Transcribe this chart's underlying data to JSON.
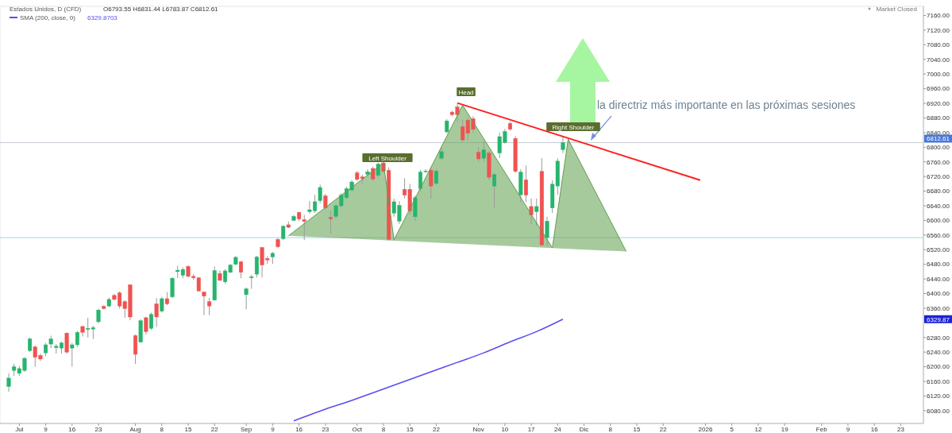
{
  "chart_data": {
    "type": "candlestick",
    "title": "Estados Unidos, D (CFD)",
    "categories": [
      null,
      null,
      "Jul",
      null,
      null,
      null,
      null,
      "9",
      null,
      null,
      null,
      null,
      "16",
      null,
      null,
      null,
      null,
      "23",
      null,
      null,
      null,
      null,
      null,
      null,
      "Aug",
      null,
      null,
      null,
      null,
      "8",
      null,
      null,
      null,
      null,
      "15",
      null,
      null,
      null,
      null,
      "22",
      null,
      null,
      null,
      null,
      null,
      "Sep",
      null,
      null,
      null,
      null,
      "9",
      null,
      null,
      null,
      null,
      "16",
      null,
      null,
      null,
      null,
      "23",
      null,
      null,
      null,
      null,
      null,
      "Oct",
      null,
      null,
      null,
      null,
      "8",
      null,
      null,
      null,
      null,
      "15",
      null,
      null,
      null,
      null,
      "22",
      null,
      null,
      null,
      null,
      null,
      null,
      null,
      "Nov",
      null,
      null,
      null,
      null,
      "10",
      null,
      null,
      null,
      null,
      "17",
      null,
      null,
      null,
      null,
      "24",
      null,
      null,
      null,
      null,
      "Dic",
      null,
      null,
      null,
      null,
      "8",
      null,
      null,
      null,
      null,
      "15",
      null,
      null,
      null,
      null,
      "22",
      null,
      null,
      null,
      null,
      null,
      null,
      null,
      "2026",
      null,
      null,
      null,
      null,
      "5",
      null,
      null,
      null,
      null,
      "12",
      null,
      null,
      null,
      null,
      "19",
      null,
      null,
      null,
      null,
      null,
      null,
      "Feb",
      null,
      null,
      null,
      null,
      "9",
      null,
      null,
      null,
      null,
      "16",
      null,
      null,
      null,
      null,
      "23",
      null,
      null,
      null,
      null
    ],
    "ohlc": [
      [
        6146,
        6182,
        6132,
        6169
      ],
      [
        6190,
        6208,
        6175,
        6200
      ],
      [
        6182,
        6202,
        6175,
        6195
      ],
      [
        6190,
        6226,
        6186,
        6223
      ],
      [
        6244,
        6280,
        6240,
        6276
      ],
      [
        6254,
        6258,
        6200,
        6226
      ],
      [
        6231,
        6236,
        6216,
        6221
      ],
      [
        6238,
        6265,
        6229,
        6260
      ],
      [
        6262,
        6285,
        6251,
        6276
      ],
      [
        6252,
        6262,
        6236,
        6256
      ],
      [
        6251,
        6269,
        6236,
        6265
      ],
      [
        6292,
        6294,
        6236,
        6240
      ],
      [
        6251,
        6265,
        6200,
        6260
      ],
      [
        6260,
        6298,
        6254,
        6294
      ],
      [
        6310,
        6312,
        6283,
        6294
      ],
      [
        6302,
        6334,
        6280,
        6305
      ],
      [
        6303,
        6312,
        6276,
        6307
      ],
      [
        6323,
        6359,
        6319,
        6355
      ],
      [
        6365,
        6368,
        6357,
        6359
      ],
      [
        6366,
        6389,
        6363,
        6384
      ],
      [
        6395,
        6399,
        6381,
        6384
      ],
      [
        6402,
        6406,
        6359,
        6366
      ],
      [
        6378,
        6382,
        6334,
        6359
      ],
      [
        6424,
        6424,
        6327,
        6336
      ],
      [
        6285,
        6288,
        6208,
        6234
      ],
      [
        6267,
        6330,
        6267,
        6326
      ],
      [
        6334,
        6337,
        6288,
        6296
      ],
      [
        6305,
        6348,
        6301,
        6343
      ],
      [
        6372,
        6388,
        6309,
        6336
      ],
      [
        6352,
        6391,
        6348,
        6386
      ],
      [
        6386,
        6404,
        6368,
        6372
      ],
      [
        6391,
        6445,
        6388,
        6442
      ],
      [
        6460,
        6476,
        6442,
        6464
      ],
      [
        6450,
        6471,
        6442,
        6466
      ],
      [
        6474,
        6478,
        6444,
        6447
      ],
      [
        6447,
        6453,
        6438,
        6443
      ],
      [
        6443,
        6445,
        6406,
        6407
      ],
      [
        6404,
        6406,
        6341,
        6393
      ],
      [
        6378,
        6388,
        6341,
        6366
      ],
      [
        6382,
        6474,
        6381,
        6463
      ],
      [
        6455,
        6463,
        6435,
        6436
      ],
      [
        6432,
        6467,
        6427,
        6462
      ],
      [
        6458,
        6481,
        6456,
        6478
      ],
      [
        6480,
        6503,
        6478,
        6499
      ],
      [
        6487,
        6489,
        6442,
        6458
      ],
      [
        6397,
        6417,
        6357,
        6413
      ],
      [
        6443,
        6451,
        6413,
        6446
      ],
      [
        6453,
        6503,
        6444,
        6500
      ],
      [
        6526,
        6528,
        6444,
        6478
      ],
      [
        6496,
        6502,
        6481,
        6492
      ],
      [
        6500,
        6514,
        6481,
        6510
      ],
      [
        6548,
        6552,
        6525,
        6528
      ],
      [
        6550,
        6586,
        6546,
        6584
      ],
      [
        6588,
        6597,
        6579,
        6581
      ],
      [
        6600,
        6615,
        6598,
        6611
      ],
      [
        6622,
        6624,
        6598,
        6604
      ],
      [
        6602,
        6615,
        6546,
        6597
      ],
      [
        6624,
        6653,
        6618,
        6629
      ],
      [
        6626,
        6670,
        6620,
        6651
      ],
      [
        6654,
        6698,
        6647,
        6690
      ],
      [
        6667,
        6672,
        6629,
        6634
      ],
      [
        6608,
        6626,
        6564,
        6604
      ],
      [
        6611,
        6645,
        6604,
        6640
      ],
      [
        6640,
        6674,
        6635,
        6669
      ],
      [
        6662,
        6692,
        6658,
        6687
      ],
      [
        6683,
        6710,
        6680,
        6705
      ],
      [
        6730,
        6735,
        6708,
        6712
      ],
      [
        6719,
        6725,
        6700,
        6714
      ],
      [
        6726,
        6740,
        6720,
        6733
      ],
      [
        6742,
        6747,
        6708,
        6713
      ],
      [
        6723,
        6758,
        6718,
        6754
      ],
      [
        6757,
        6762,
        6730,
        6734
      ],
      [
        6737,
        6745,
        6545,
        6548
      ],
      [
        6620,
        6660,
        6610,
        6651
      ],
      [
        6598,
        6653,
        6590,
        6641
      ],
      [
        6685,
        6715,
        6660,
        6669
      ],
      [
        6685,
        6700,
        6616,
        6626
      ],
      [
        6610,
        6668,
        6598,
        6662
      ],
      [
        6687,
        6738,
        6680,
        6732
      ],
      [
        6733,
        6740,
        6730,
        6735
      ],
      [
        6737,
        6745,
        6660,
        6694
      ],
      [
        6701,
        6740,
        6697,
        6735
      ],
      [
        6770,
        6800,
        6764,
        6788
      ],
      [
        6842,
        6877,
        6838,
        6872
      ],
      [
        6896,
        6900,
        6885,
        6889
      ],
      [
        6910,
        6920,
        6870,
        6889
      ],
      [
        6856,
        6875,
        6815,
        6820
      ],
      [
        6874,
        6880,
        6818,
        6838
      ],
      [
        6878,
        6885,
        6840,
        6849
      ],
      [
        6786,
        6800,
        6760,
        6768
      ],
      [
        6770,
        6815,
        6760,
        6793
      ],
      [
        6784,
        6790,
        6710,
        6718
      ],
      [
        6694,
        6730,
        6635,
        6725
      ],
      [
        6784,
        6840,
        6770,
        6829
      ],
      [
        6813,
        6850,
        6810,
        6843
      ],
      [
        6865,
        6870,
        6845,
        6849
      ],
      [
        6824,
        6830,
        6730,
        6734
      ],
      [
        6670,
        6740,
        6650,
        6732
      ],
      [
        6711,
        6750,
        6650,
        6669
      ],
      [
        6638,
        6660,
        6590,
        6615
      ],
      [
        6624,
        6660,
        6585,
        6638
      ],
      [
        6734,
        6770,
        6530,
        6533
      ],
      [
        6553,
        6610,
        6530,
        6598
      ],
      [
        6634,
        6710,
        6620,
        6699
      ],
      [
        6694,
        6770,
        6670,
        6762
      ],
      [
        6793.55,
        6831.44,
        6783.87,
        6812.61
      ],
      null,
      null,
      null,
      null,
      null,
      null,
      null,
      null,
      null,
      null,
      null,
      null,
      null,
      null,
      null,
      null,
      null,
      null,
      null,
      null,
      null,
      null,
      null,
      null,
      null,
      null,
      null,
      null,
      null,
      null,
      null,
      null,
      null,
      null,
      null,
      null,
      null,
      null,
      null,
      null,
      null,
      null,
      null,
      null,
      null,
      null,
      null,
      null,
      null,
      null,
      null,
      null,
      null,
      null,
      null,
      null,
      null,
      null,
      null,
      null,
      null,
      null,
      null,
      null,
      null,
      null,
      null,
      null
    ],
    "colors": [
      "#26b56e",
      "#26b56e",
      "#26b56e",
      "#26b56e",
      "#26b56e",
      "#ef5350",
      "#ef5350",
      "#26b56e",
      "#26b56e",
      "#26b56e",
      "#26b56e",
      "#ef5350",
      "#26b56e",
      "#26b56e",
      "#ef5350",
      "#26b56e",
      "#26b56e",
      "#26b56e",
      "#ef5350",
      "#26b56e",
      "#ef5350",
      "#ef5350",
      "#ef5350",
      "#ef5350",
      "#ef5350",
      "#26b56e",
      "#ef5350",
      "#26b56e",
      "#ef5350",
      "#26b56e",
      "#ef5350",
      "#26b56e",
      "#26b56e",
      "#26b56e",
      "#ef5350",
      "#ef5350",
      "#ef5350",
      "#ef5350",
      "#ef5350",
      "#26b56e",
      "#ef5350",
      "#26b56e",
      "#26b56e",
      "#26b56e",
      "#ef5350",
      "#26b56e",
      "#26b56e",
      "#26b56e",
      "#ef5350",
      "#ef5350",
      "#26b56e",
      "#ef5350",
      "#26b56e",
      "#ef5350",
      "#26b56e",
      "#ef5350",
      "#ef5350",
      "#26b56e",
      "#26b56e",
      "#26b56e",
      "#ef5350",
      "#ef5350",
      "#26b56e",
      "#26b56e",
      "#26b56e",
      "#26b56e",
      "#ef5350",
      "#ef5350",
      "#26b56e",
      "#ef5350",
      "#26b56e",
      "#ef5350",
      "#ef5350",
      "#26b56e",
      "#26b56e",
      "#ef5350",
      "#ef5350",
      "#26b56e",
      "#26b56e",
      "#26b56e",
      "#ef5350",
      "#26b56e",
      "#26b56e",
      "#26b56e",
      "#ef5350",
      "#ef5350",
      "#ef5350",
      "#ef5350",
      "#ef5350",
      "#ef5350",
      "#26b56e",
      "#ef5350",
      "#26b56e",
      "#26b56e",
      "#26b56e",
      "#ef5350",
      "#ef5350",
      "#26b56e",
      "#ef5350",
      "#ef5350",
      "#26b56e",
      "#ef5350",
      "#26b56e",
      "#26b56e",
      "#26b56e",
      "#26b56e",
      null,
      null,
      null,
      null,
      null,
      null,
      null,
      null,
      null,
      null,
      null,
      null,
      null,
      null,
      null,
      null,
      null,
      null,
      null,
      null,
      null,
      null,
      null,
      null,
      null,
      null,
      null,
      null,
      null,
      null,
      null,
      null,
      null,
      null,
      null,
      null,
      null,
      null,
      null,
      null,
      null,
      null,
      null,
      null,
      null,
      null,
      null,
      null,
      null,
      null,
      null,
      null,
      null,
      null,
      null,
      null,
      null,
      null,
      null,
      null,
      null,
      null,
      null,
      null,
      null,
      null,
      null,
      null
    ],
    "series": [
      {
        "name": "SMA (200, close, 0)",
        "type": "line",
        "color": "#5a4cf0",
        "values": [
          null,
          null,
          null,
          null,
          null,
          null,
          null,
          null,
          null,
          null,
          null,
          null,
          null,
          null,
          null,
          null,
          null,
          null,
          null,
          null,
          null,
          null,
          null,
          null,
          null,
          null,
          null,
          null,
          null,
          null,
          null,
          null,
          null,
          null,
          null,
          null,
          null,
          null,
          null,
          null,
          null,
          null,
          null,
          null,
          null,
          null,
          null,
          null,
          null,
          null,
          null,
          null,
          null,
          null,
          6052,
          null,
          null,
          null,
          null,
          null,
          6084,
          null,
          null,
          null,
          null,
          6108,
          null,
          null,
          null,
          null,
          6134,
          null,
          null,
          null,
          null,
          6160,
          null,
          null,
          null,
          null,
          6186,
          null,
          null,
          null,
          null,
          6212,
          null,
          null,
          null,
          null,
          6238,
          null,
          null,
          null,
          null,
          6268,
          null,
          null,
          null,
          null,
          6296,
          null,
          null,
          null,
          null,
          6330,
          null,
          null,
          null,
          null,
          null,
          null,
          null,
          null,
          null,
          null,
          null,
          null,
          null,
          null,
          null,
          null,
          null,
          null,
          null,
          null,
          null,
          null,
          null,
          null,
          null,
          null,
          null,
          null,
          null,
          null,
          null,
          null,
          null,
          null,
          null,
          null,
          null,
          null,
          null,
          null,
          null,
          null,
          null,
          null,
          null,
          null,
          null,
          null,
          null,
          null,
          null,
          null,
          null,
          null,
          null,
          null,
          null,
          null,
          null,
          null,
          null,
          null,
          null,
          null,
          null,
          null,
          null,
          null
        ]
      },
      {
        "type": "line",
        "color": "#ff2020",
        "values": [
          null,
          null,
          null,
          null,
          null,
          null,
          null,
          null,
          null,
          null,
          null,
          null,
          null,
          null,
          null,
          null,
          null,
          null,
          null,
          null,
          null,
          null,
          null,
          null,
          null,
          null,
          null,
          null,
          null,
          null,
          null,
          null,
          null,
          null,
          null,
          null,
          null,
          null,
          null,
          null,
          null,
          null,
          null,
          null,
          null,
          null,
          null,
          null,
          null,
          null,
          null,
          null,
          null,
          null,
          null,
          null,
          null,
          null,
          null,
          null,
          null,
          null,
          null,
          null,
          null,
          null,
          null,
          null,
          null,
          null,
          null,
          null,
          null,
          null,
          null,
          null,
          null,
          null,
          null,
          null,
          null,
          null,
          null,
          null,
          null,
          6921,
          null,
          null,
          null,
          null,
          null,
          null,
          null,
          null,
          null,
          null,
          null,
          null,
          null,
          null,
          null,
          null,
          null,
          null,
          null,
          null,
          null,
          null,
          null,
          null,
          null,
          null,
          null,
          null,
          null,
          null,
          null,
          null,
          null,
          null,
          null,
          null,
          null,
          null,
          null,
          null,
          null,
          null,
          null,
          null,
          null,
          6710,
          null,
          null,
          null,
          null,
          null,
          null,
          null,
          null,
          null,
          null,
          null,
          null,
          null,
          null,
          null,
          null,
          null,
          null,
          null,
          null,
          null,
          null,
          null,
          null,
          null,
          null,
          null,
          null,
          null,
          null,
          null,
          null,
          null,
          null,
          null,
          null,
          null,
          null,
          null,
          null,
          null,
          null
        ]
      },
      {
        "type": "line",
        "color": "#5f9e4c",
        "values": [
          null,
          null,
          null,
          null,
          null,
          null,
          null,
          null,
          null,
          null,
          null,
          null,
          null,
          null,
          null,
          null,
          null,
          null,
          null,
          null,
          null,
          null,
          null,
          null,
          null,
          null,
          null,
          null,
          null,
          null,
          null,
          null,
          null,
          null,
          null,
          null,
          null,
          null,
          null,
          null,
          null,
          null,
          null,
          null,
          null,
          null,
          null,
          null,
          null,
          null,
          null,
          null,
          null,
          6558,
          null,
          null,
          null,
          null,
          null,
          null,
          null,
          null,
          null,
          null,
          null,
          null,
          null,
          null,
          null,
          null,
          null,
          6757,
          null,
          6547,
          null,
          null,
          null,
          null,
          null,
          null,
          null,
          null,
          null,
          null,
          null,
          null,
          6915,
          null,
          null,
          null,
          null,
          null,
          null,
          null,
          null,
          null,
          null,
          null,
          null,
          null,
          null,
          null,
          null,
          6525,
          null,
          null,
          6822,
          null,
          null,
          null,
          null,
          null,
          null,
          null,
          null,
          null,
          null,
          6515,
          null,
          null,
          null,
          null,
          null,
          null,
          null,
          null,
          null,
          null,
          null,
          null,
          null,
          null,
          null,
          null,
          null,
          null,
          null,
          null,
          null,
          null,
          null,
          null,
          null,
          null,
          null,
          null,
          null,
          null,
          null,
          null,
          null,
          null,
          null,
          null,
          null,
          null,
          null,
          null,
          null,
          null,
          null,
          null,
          null,
          null,
          null,
          null,
          null,
          null,
          null,
          null,
          null,
          null,
          null,
          null
        ],
        "upper": [
          null,
          null,
          null,
          null,
          null,
          null,
          null,
          null,
          null,
          null,
          null,
          null,
          null,
          null,
          null,
          null,
          null,
          null,
          null,
          null,
          null,
          null,
          null,
          null,
          null,
          null,
          null,
          null,
          null,
          null,
          null,
          null,
          null,
          null,
          null,
          null,
          null,
          null,
          null,
          null,
          null,
          null,
          null,
          null,
          null,
          null,
          null,
          null,
          null,
          null,
          null,
          null,
          null,
          6558,
          null,
          null,
          null,
          null,
          null,
          null,
          null,
          null,
          null,
          null,
          null,
          null,
          null,
          null,
          null,
          null,
          null,
          6757,
          null,
          6547,
          null,
          null,
          null,
          null,
          null,
          null,
          null,
          null,
          null,
          null,
          null,
          null,
          6915,
          null,
          null,
          null,
          null,
          null,
          null,
          null,
          null,
          null,
          null,
          null,
          null,
          null,
          null,
          null,
          null,
          6525,
          null,
          null,
          6822,
          null,
          null,
          null,
          null,
          null,
          null,
          null,
          null,
          null,
          null,
          6515,
          null,
          null,
          null,
          null,
          null,
          null,
          null,
          null,
          null,
          null,
          null,
          null,
          null,
          null,
          null,
          null,
          null,
          null,
          null,
          null,
          null,
          null,
          null,
          null,
          null,
          null,
          null,
          null,
          null,
          null,
          null,
          null,
          null,
          null,
          null,
          null,
          null,
          null,
          null,
          null,
          null,
          null,
          null,
          null,
          null,
          null,
          null,
          null,
          null,
          null,
          null,
          null,
          null,
          null,
          null,
          null
        ],
        "lower": [
          null,
          null,
          null,
          null,
          null,
          null,
          null,
          null,
          null,
          null,
          null,
          null,
          null,
          null,
          null,
          null,
          null,
          null,
          null,
          null,
          null,
          null,
          null,
          null,
          null,
          null,
          null,
          null,
          null,
          null,
          null,
          null,
          null,
          null,
          null,
          null,
          null,
          null,
          null,
          null,
          null,
          null,
          null,
          null,
          null,
          null,
          null,
          null,
          null,
          null,
          null,
          null,
          null,
          6558,
          null,
          null,
          null,
          null,
          null,
          null,
          null,
          null,
          null,
          null,
          null,
          null,
          null,
          null,
          null,
          null,
          null,
          6545.9,
          null,
          6544.6,
          null,
          null,
          null,
          null,
          null,
          null,
          null,
          null,
          null,
          null,
          null,
          null,
          6535.8,
          null,
          null,
          null,
          null,
          null,
          null,
          null,
          null,
          null,
          null,
          null,
          null,
          null,
          null,
          null,
          null,
          6524.4,
          null,
          null,
          6522.4,
          null,
          null,
          null,
          null,
          null,
          null,
          null,
          null,
          null,
          null,
          6515,
          null,
          null,
          null,
          null,
          null,
          null,
          null,
          null,
          null,
          null,
          null,
          null,
          null,
          null,
          null,
          null,
          null,
          null,
          null,
          null,
          null,
          null,
          null,
          null,
          null,
          null,
          null,
          null,
          null,
          null,
          null,
          null,
          null,
          null,
          null,
          null,
          null,
          null,
          null,
          null,
          null,
          null,
          null,
          null,
          null,
          null,
          null,
          null,
          null,
          null,
          null,
          null,
          null,
          null,
          null,
          null
        ]
      }
    ],
    "ylim": [
      6045,
      7185
    ],
    "yticks": [
      {
        "value": 6080,
        "label": "6080.00"
      },
      {
        "value": 6120,
        "label": "6120.00"
      },
      {
        "value": 6160,
        "label": "6160.00"
      },
      {
        "value": 6200,
        "label": "6200.00"
      },
      {
        "value": 6240,
        "label": "6240.00"
      },
      {
        "value": 6280,
        "label": "6280.00"
      },
      {
        "value": 6360,
        "label": "6360.00"
      },
      {
        "value": 6400,
        "label": "6400.00"
      },
      {
        "value": 6440,
        "label": "6440.00"
      },
      {
        "value": 6480,
        "label": "6480.00"
      },
      {
        "value": 6520,
        "label": "6520.00"
      },
      {
        "value": 6560,
        "label": "6560.00"
      },
      {
        "value": 6600,
        "label": "6600.00"
      },
      {
        "value": 6640,
        "label": "6640.00"
      },
      {
        "value": 6680,
        "label": "6680.00"
      },
      {
        "value": 6720,
        "label": "6720.00"
      },
      {
        "value": 6760,
        "label": "6760.00"
      },
      {
        "value": 6800,
        "label": "6800.00"
      },
      {
        "value": 6840,
        "label": "6840.00"
      },
      {
        "value": 6880,
        "label": "6880.00"
      },
      {
        "value": 6920,
        "label": "6920.00"
      },
      {
        "value": 6960,
        "label": "6960.00"
      },
      {
        "value": 7000,
        "label": "7000.00"
      },
      {
        "value": 7040,
        "label": "7040.00"
      },
      {
        "value": 7080,
        "label": "7080.00"
      },
      {
        "value": 7120,
        "label": "7120.00"
      },
      {
        "value": 7160,
        "label": "7160.00"
      }
    ],
    "ref_lines": [
      {
        "axis": "y",
        "value": 6812.61,
        "label": "6812.61",
        "color": "#c8ccd4"
      },
      {
        "axis": "y",
        "value": 6553,
        "color": "#9fd8e4"
      }
    ],
    "annotations": [
      "O6793.55 H6831.44 L6783.87 C6812.61",
      "6329.8703",
      "Market Closed",
      "Left Shoulder",
      "Head",
      "Right Shoulder",
      "la directriz más importante en las próximas sesiones",
      "6329.87"
    ],
    "legend": "top left"
  }
}
